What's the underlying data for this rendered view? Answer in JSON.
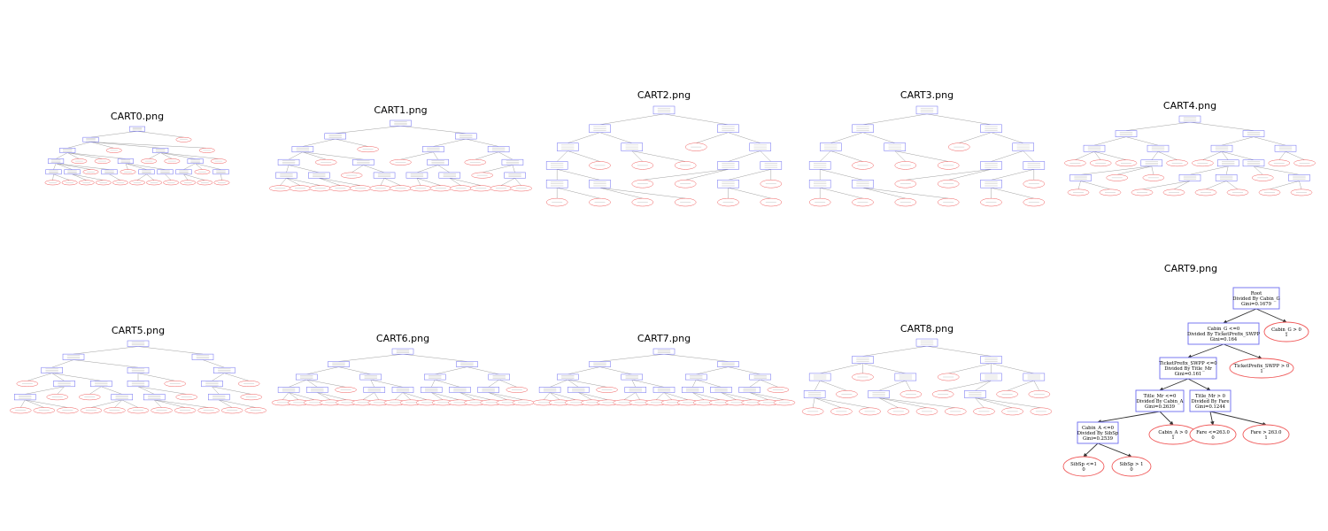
{
  "panels": [
    {
      "id": 0,
      "title": "CART0.png"
    },
    {
      "id": 1,
      "title": "CART1.png"
    },
    {
      "id": 2,
      "title": "CART2.png"
    },
    {
      "id": 3,
      "title": "CART3.png"
    },
    {
      "id": 4,
      "title": "CART4.png"
    },
    {
      "id": 5,
      "title": "CART5.png"
    },
    {
      "id": 6,
      "title": "CART6.png"
    },
    {
      "id": 7,
      "title": "CART7.png"
    },
    {
      "id": 8,
      "title": "CART8.png"
    },
    {
      "id": 9,
      "title": "CART9.png"
    }
  ],
  "cart9_tree": {
    "colors": {
      "split_border": "#6c6cf0",
      "leaf_border": "#f05a5a",
      "edge": "#333333"
    },
    "nodes": [
      {
        "key": "root",
        "kind": "split",
        "lines": [
          "Root",
          "Divided By Cabin_G",
          "Gini=0.1679"
        ]
      },
      {
        "key": "n1",
        "kind": "split",
        "lines": [
          "Cabin_G <=0",
          "Divided By TicketPrefix_SWPP",
          "Gini=0.164"
        ]
      },
      {
        "key": "n2",
        "kind": "leaf",
        "lines": [
          "Cabin_G > 0",
          "1"
        ]
      },
      {
        "key": "n3",
        "kind": "split",
        "lines": [
          "TicketPrefix_SWPP <=0",
          "Divided By Title_Mr",
          "Gini=0.161"
        ]
      },
      {
        "key": "n4",
        "kind": "leaf",
        "lines": [
          "TicketPrefix_SWPP > 0",
          "1"
        ]
      },
      {
        "key": "n5",
        "kind": "split",
        "lines": [
          "Title_Mr <=0",
          "Divided By Cabin_A",
          "Gini=0.2639"
        ]
      },
      {
        "key": "n6",
        "kind": "split",
        "lines": [
          "Title_Mr > 0",
          "Divided By Fare",
          "Gini=0.1244"
        ]
      },
      {
        "key": "n7",
        "kind": "split",
        "lines": [
          "Cabin_A <=0",
          "Divided By SibSp",
          "Gini=0.2539"
        ]
      },
      {
        "key": "n8",
        "kind": "leaf",
        "lines": [
          "Cabin_A > 0",
          "1"
        ]
      },
      {
        "key": "n9",
        "kind": "leaf",
        "lines": [
          "Fare <=263.0",
          "0"
        ]
      },
      {
        "key": "n10",
        "kind": "leaf",
        "lines": [
          "Fare > 263.0",
          "1"
        ]
      },
      {
        "key": "n11",
        "kind": "leaf",
        "lines": [
          "SibSp <=1",
          "0"
        ]
      },
      {
        "key": "n12",
        "kind": "leaf",
        "lines": [
          "SibSp > 1",
          "0"
        ]
      }
    ]
  }
}
